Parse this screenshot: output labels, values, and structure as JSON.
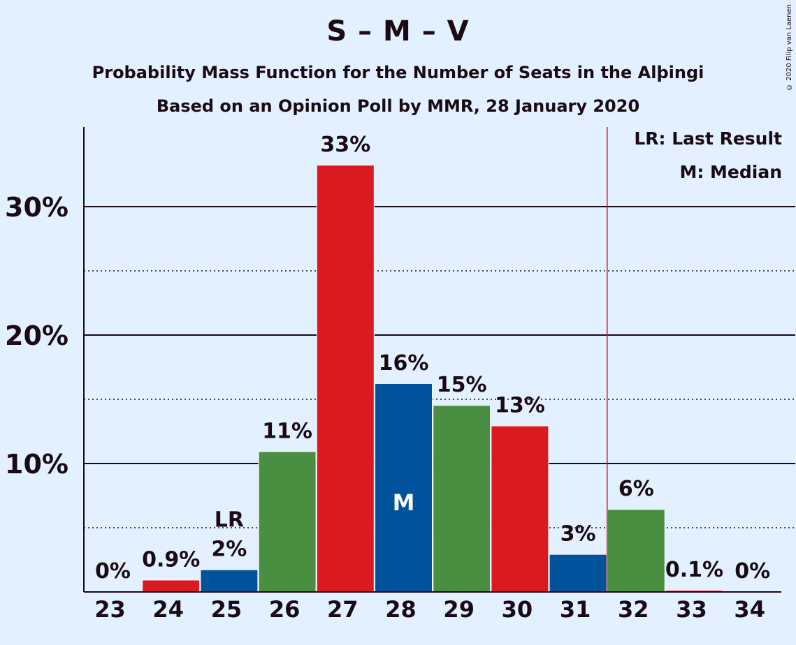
{
  "title": "S – M – V",
  "subtitle": "Probability Mass Function for the Number of Seats in the Alþingi",
  "subtitle2": "Based on an Opinion Poll by MMR, 28 January 2020",
  "copyright": "© 2020 Filip van Laenen",
  "legend": {
    "lr": "LR: Last Result",
    "m": "M: Median"
  },
  "colors": {
    "red": "#d91a21",
    "blue": "#00529b",
    "green": "#4a8f41",
    "background": "#e2f0ff",
    "lastResultLine": "#d91a21"
  },
  "chart_data": {
    "type": "bar",
    "categories": [
      "23",
      "24",
      "25",
      "26",
      "27",
      "28",
      "29",
      "30",
      "31",
      "32",
      "33",
      "34"
    ],
    "values": [
      0,
      0.9,
      1.7,
      10.9,
      33.2,
      16.2,
      14.5,
      12.9,
      2.9,
      6.4,
      0.1,
      0
    ],
    "labels": [
      "0%",
      "0.9%",
      "2%",
      "11%",
      "33%",
      "16%",
      "15%",
      "13%",
      "3%",
      "6%",
      "0.1%",
      "0%"
    ],
    "bar_colors": [
      "red",
      "red",
      "blue",
      "green",
      "red",
      "blue",
      "green",
      "red",
      "blue",
      "green",
      "red",
      "blue"
    ],
    "yticks": [
      10,
      20,
      30
    ],
    "ytick_labels": [
      "10%",
      "20%",
      "30%"
    ],
    "minor_gridlines": [
      5,
      15,
      25
    ],
    "ylim": [
      0,
      36
    ],
    "last_result": "25",
    "last_result_marker": "LR",
    "median": "28",
    "median_marker": "M",
    "majority_line_after": "31",
    "legend_position": "top-right"
  }
}
